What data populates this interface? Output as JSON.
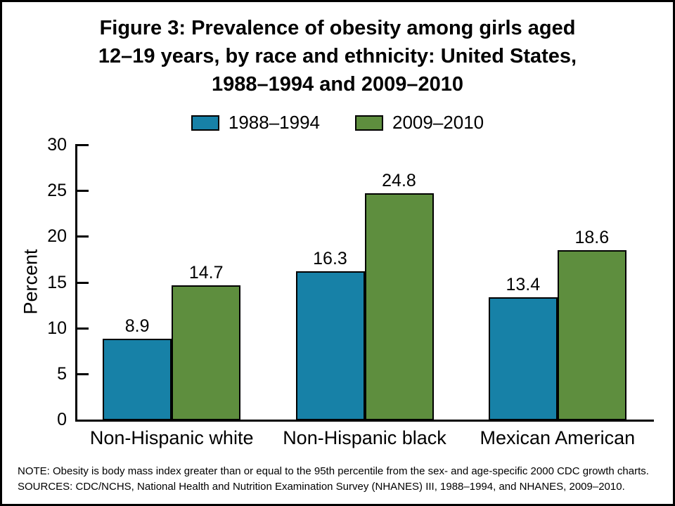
{
  "figure": {
    "title_lines": [
      "Figure 3: Prevalence of obesity among girls aged",
      "12–19 years, by race and ethnicity: United States,",
      "1988–1994 and 2009–2010"
    ],
    "note": "NOTE: Obesity is body mass index greater than or equal to the 95th percentile from the sex- and age-specific 2000 CDC growth charts.",
    "sources": "SOURCES: CDC/NCHS, National Health and Nutrition Examination Survey (NHANES) III, 1988–1994, and NHANES, 2009–2010."
  },
  "colors": {
    "series1": "#1781A7",
    "series2": "#5E8E3E",
    "axis": "#000000",
    "background": "#FFFFFF",
    "border": "#000000"
  },
  "chart_data": {
    "type": "bar",
    "title": "Figure 3: Prevalence of obesity among girls aged 12–19 years, by race and ethnicity: United States, 1988–1994 and 2009–2010",
    "categories": [
      "Non-Hispanic white",
      "Non-Hispanic black",
      "Mexican American"
    ],
    "series": [
      {
        "name": "1988–1994",
        "color": "#1781A7",
        "values": [
          8.9,
          16.3,
          13.4
        ]
      },
      {
        "name": "2009–2010",
        "color": "#5E8E3E",
        "values": [
          14.7,
          24.8,
          18.6
        ]
      }
    ],
    "xlabel": "",
    "ylabel": "Percent",
    "ylim": [
      0,
      30
    ],
    "yticks": [
      0,
      5,
      10,
      15,
      20,
      25,
      30
    ],
    "grid": false,
    "legend_position": "top",
    "value_labels": true
  }
}
